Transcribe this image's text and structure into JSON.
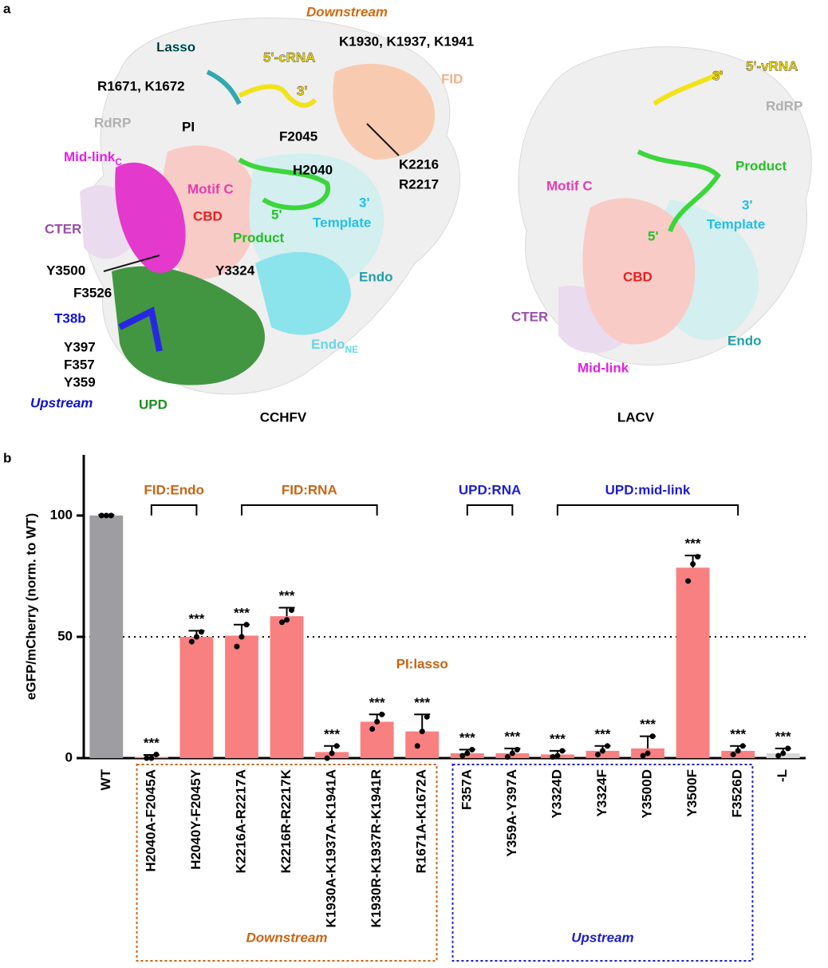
{
  "panel_a": {
    "letter": "a",
    "cchfv": {
      "title": "CCHFV",
      "labels": [
        "Downstream",
        "Lasso",
        "5'-cRNA",
        "K1930, K1937, K1941",
        "R1671, K1672",
        "3'",
        "FID",
        "RdRP",
        "PI",
        "F2045",
        "Mid-link",
        "C",
        "Motif C",
        "H2040",
        "K2216",
        "R2217",
        "CBD",
        "5'",
        "3'",
        "Template",
        "Product",
        "CTER",
        "Y3500",
        "Y3324",
        "Endo",
        "F3526",
        "T38b",
        "Y397",
        "F357",
        "Y359",
        "Endo",
        "NE",
        "Upstream",
        "UPD"
      ]
    },
    "lacv": {
      "title": "LACV",
      "labels": [
        "3'",
        "5'-vRNA",
        "RdRP",
        "Product",
        "Motif C",
        "3'",
        "Template",
        "5'",
        "CBD",
        "CTER",
        "Endo",
        "Mid-link"
      ]
    }
  },
  "chart_data": {
    "type": "bar",
    "panel_letter": "b",
    "ylabel": "eGFP/mCherry (norm. to WT)",
    "categories": [
      "WT",
      "H2040A-F2045A",
      "H2040Y-F2045Y",
      "K2216A-R2217A",
      "K2216R-R2217K",
      "K1930A-K1937A-K1941A",
      "K1930R-K1937R-K1941R",
      "R1671A-K1672A",
      "F357A",
      "Y359A-Y397A",
      "Y3324D",
      "Y3324F",
      "Y3500D",
      "Y3500F",
      "F3526D",
      "-L"
    ],
    "values": [
      100,
      0.5,
      50,
      50.5,
      58.5,
      2.5,
      15,
      11,
      2,
      2,
      1.5,
      3,
      4,
      78.5,
      3,
      2
    ],
    "errors": [
      0.3,
      0.8,
      2.5,
      4.5,
      3.5,
      2.5,
      3,
      7,
      1.5,
      2,
      1.5,
      2,
      5,
      5,
      2,
      2
    ],
    "points": [
      [
        100,
        100,
        100
      ],
      [
        0,
        0,
        1.5
      ],
      [
        48,
        50,
        52
      ],
      [
        46,
        50,
        55
      ],
      [
        56,
        57,
        61
      ],
      [
        0,
        2,
        5
      ],
      [
        12,
        15,
        18
      ],
      [
        5,
        11,
        17
      ],
      [
        1,
        2,
        3.5
      ],
      [
        0.5,
        2,
        3.5
      ],
      [
        0.5,
        1,
        3
      ],
      [
        1.5,
        3,
        5
      ],
      [
        1,
        2,
        9
      ],
      [
        73,
        80,
        83
      ],
      [
        1.5,
        3,
        5
      ],
      [
        1,
        2,
        4
      ]
    ],
    "colors": [
      "#9e9ea2",
      "#f88080",
      "#f88080",
      "#f88080",
      "#f88080",
      "#f88080",
      "#f88080",
      "#f88080",
      "#f88080",
      "#f88080",
      "#f88080",
      "#f88080",
      "#f88080",
      "#f88080",
      "#f88080",
      "#d8d8da"
    ],
    "significance": [
      null,
      "***",
      "***",
      "***",
      "***",
      "***",
      "***",
      "***",
      "***",
      "***",
      "***",
      "***",
      "***",
      "***",
      "***",
      "***"
    ],
    "ylim": [
      0,
      125
    ],
    "yticks": [
      0,
      50,
      100
    ],
    "reference_line": 50,
    "brackets": [
      {
        "label": "FID:Endo",
        "span": [
          1,
          2
        ],
        "color": "#c86414"
      },
      {
        "label": "FID:RNA",
        "span": [
          3,
          6
        ],
        "color": "#c86414"
      },
      {
        "label": "UPD:RNA",
        "span": [
          8,
          9
        ],
        "color": "#1c1cd0"
      },
      {
        "label": "UPD:mid-link",
        "span": [
          10,
          14
        ],
        "color": "#1c1cd0"
      }
    ],
    "annotation": {
      "text": "PI:lasso",
      "color": "#c86414"
    },
    "groups": [
      {
        "label": "Downstream",
        "span": [
          1,
          7
        ],
        "color": "#c86414"
      },
      {
        "label": "Upstream",
        "span": [
          8,
          14
        ],
        "color": "#1c1cd0"
      }
    ]
  }
}
